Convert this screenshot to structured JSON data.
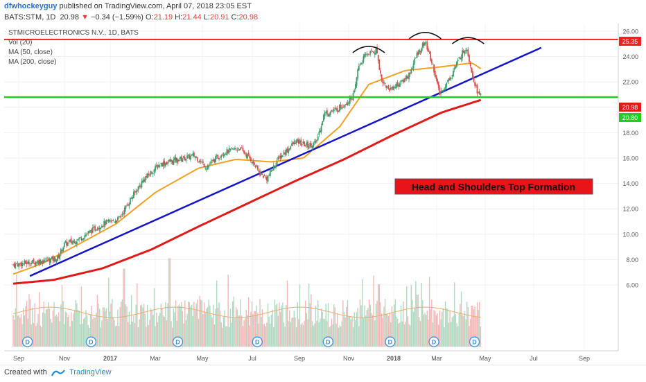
{
  "header": {
    "author": "dfwhockeyguy",
    "published": " published on TradingView.com, April 07, 2018 23:05 EST",
    "symbol": "BATS:STM, 1D",
    "last": "20.98",
    "change": "−0.34 (−1.59%)",
    "o_label": "O:",
    "o_value": "21.19",
    "h_label": "H:",
    "h_value": "21.44",
    "l_label": "L:",
    "l_value": "20.91",
    "c_label": "C:",
    "c_value": "20.98"
  },
  "legend": {
    "title": "STMICROELECTRONICS N.V., 1D, BATS",
    "vol": "Vol (20)",
    "ma50": "MA (50, close)",
    "ma200": "MA (200, close)"
  },
  "annotation": "Head and Shoulders Top Formation",
  "price_tags": {
    "resistance": "25.35",
    "last": "20.98",
    "support": "20.80"
  },
  "dividend_marker": "D",
  "footer": {
    "created_with": "Created with",
    "brand": "TradingView"
  },
  "colors": {
    "resistance": "#ee2222",
    "support": "#22cc22",
    "trendline": "#1515c8",
    "ma50": "#f2a023",
    "ma200": "#e01919",
    "up": "#3a9b6b",
    "down": "#d94d4d",
    "annotation_bg": "#e8141a",
    "dividend": "#3c8ed8"
  },
  "chart_data": {
    "type": "candlestick",
    "title": "STMICROELECTRONICS N.V., 1D, BATS",
    "x_ticks": [
      "Sep",
      "Nov",
      "2017",
      "Mar",
      "May",
      "Jul",
      "Sep",
      "Nov",
      "2018",
      "Mar",
      "May",
      "Jul",
      "Sep"
    ],
    "y_ticks": [
      "26.00",
      "24.00",
      "22.00",
      "20.00",
      "18.00",
      "16.00",
      "14.00",
      "12.00",
      "10.00",
      "8.00",
      "6.00"
    ],
    "ylim": [
      5.1,
      26.6
    ],
    "resistance": 25.35,
    "support": 20.8,
    "last_close": 20.98,
    "trendline": {
      "from": [
        "2016-09-15",
        6.7
      ],
      "to": [
        "2018-06-20",
        24.7
      ]
    },
    "close_anchors": [
      [
        "2016-08-25",
        7.6
      ],
      [
        "2016-09-20",
        7.8
      ],
      [
        "2016-10-20",
        8.1
      ],
      [
        "2016-10-28",
        9.2
      ],
      [
        "2016-11-15",
        9.6
      ],
      [
        "2016-12-15",
        10.8
      ],
      [
        "2017-01-05",
        11.2
      ],
      [
        "2017-01-20",
        12.8
      ],
      [
        "2017-02-05",
        14.3
      ],
      [
        "2017-02-25",
        15.5
      ],
      [
        "2017-03-15",
        15.8
      ],
      [
        "2017-04-10",
        16.2
      ],
      [
        "2017-04-25",
        15.3
      ],
      [
        "2017-05-15",
        16.4
      ],
      [
        "2017-06-05",
        16.8
      ],
      [
        "2017-06-20",
        15.9
      ],
      [
        "2017-07-01",
        14.8
      ],
      [
        "2017-07-10",
        14.4
      ],
      [
        "2017-07-25",
        16.0
      ],
      [
        "2017-08-15",
        17.3
      ],
      [
        "2017-08-30",
        17.0
      ],
      [
        "2017-09-10",
        17.2
      ],
      [
        "2017-09-20",
        19.5
      ],
      [
        "2017-10-05",
        19.8
      ],
      [
        "2017-10-20",
        20.5
      ],
      [
        "2017-10-28",
        21.1
      ],
      [
        "2017-11-02",
        23.2
      ],
      [
        "2017-11-12",
        24.2
      ],
      [
        "2017-11-25",
        24.5
      ],
      [
        "2017-12-01",
        22.2
      ],
      [
        "2017-12-10",
        21.4
      ],
      [
        "2017-12-25",
        21.9
      ],
      [
        "2018-01-05",
        22.6
      ],
      [
        "2018-01-15",
        24.2
      ],
      [
        "2018-01-25",
        25.2
      ],
      [
        "2018-02-05",
        23.0
      ],
      [
        "2018-02-12",
        21.0
      ],
      [
        "2018-02-25",
        22.3
      ],
      [
        "2018-03-10",
        24.0
      ],
      [
        "2018-03-18",
        24.8
      ],
      [
        "2018-03-26",
        22.4
      ],
      [
        "2018-04-02",
        21.0
      ],
      [
        "2018-04-06",
        20.98
      ]
    ],
    "ma50": [
      [
        "2016-08-25",
        6.85
      ],
      [
        "2016-10-01",
        7.7
      ],
      [
        "2016-11-15",
        9.2
      ],
      [
        "2017-01-01",
        10.8
      ],
      [
        "2017-02-20",
        13.3
      ],
      [
        "2017-04-15",
        15.2
      ],
      [
        "2017-06-01",
        15.9
      ],
      [
        "2017-07-15",
        15.7
      ],
      [
        "2017-08-25",
        16.0
      ],
      [
        "2017-10-10",
        18.5
      ],
      [
        "2017-11-15",
        21.8
      ],
      [
        "2017-12-31",
        22.9
      ],
      [
        "2018-02-15",
        23.2
      ],
      [
        "2018-03-25",
        23.5
      ],
      [
        "2018-04-06",
        23.0
      ]
    ],
    "ma200": [
      [
        "2016-08-25",
        6.1
      ],
      [
        "2016-10-15",
        6.4
      ],
      [
        "2016-12-15",
        7.3
      ],
      [
        "2017-02-15",
        8.8
      ],
      [
        "2017-04-15",
        10.6
      ],
      [
        "2017-06-15",
        12.4
      ],
      [
        "2017-08-15",
        14.2
      ],
      [
        "2017-10-15",
        15.9
      ],
      [
        "2017-12-15",
        17.8
      ],
      [
        "2018-02-15",
        19.6
      ],
      [
        "2018-04-06",
        20.6
      ]
    ],
    "volume": {
      "scale": "relative 0-1",
      "spikes": [
        [
          "2017-01-12",
          0.75
        ],
        [
          "2017-03-10",
          0.85
        ],
        [
          "2017-11-28",
          0.6
        ],
        [
          "2018-01-15",
          0.5
        ]
      ]
    },
    "dividends": [
      "2016-09-12",
      "2016-12-01",
      "2017-03-20",
      "2017-06-28",
      "2017-09-25",
      "2017-12-12",
      "2018-02-05",
      "2018-03-28"
    ],
    "pattern_arcs": [
      [
        "2017-11-15",
        24.8
      ],
      [
        "2018-01-25",
        25.9
      ],
      [
        "2018-03-20",
        25.5
      ]
    ]
  }
}
